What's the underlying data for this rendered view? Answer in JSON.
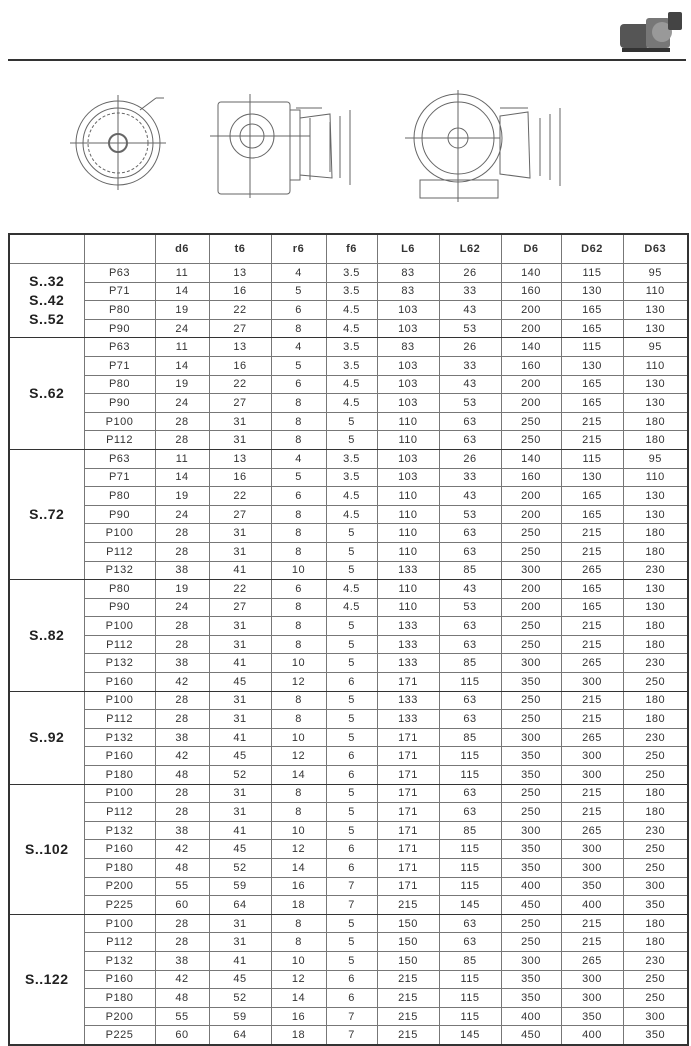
{
  "table": {
    "headers": [
      "",
      "",
      "d6",
      "t6",
      "r6",
      "f6",
      "L6",
      "L62",
      "D6",
      "D62",
      "D63"
    ],
    "groups": [
      {
        "label": [
          "S..32",
          "S..42",
          "S..52"
        ],
        "rows": [
          [
            "P63",
            "11",
            "13",
            "4",
            "3.5",
            "83",
            "26",
            "140",
            "115",
            "95"
          ],
          [
            "P71",
            "14",
            "16",
            "5",
            "3.5",
            "83",
            "33",
            "160",
            "130",
            "110"
          ],
          [
            "P80",
            "19",
            "22",
            "6",
            "4.5",
            "103",
            "43",
            "200",
            "165",
            "130"
          ],
          [
            "P90",
            "24",
            "27",
            "8",
            "4.5",
            "103",
            "53",
            "200",
            "165",
            "130"
          ]
        ]
      },
      {
        "label": [
          "S..62"
        ],
        "rows": [
          [
            "P63",
            "11",
            "13",
            "4",
            "3.5",
            "83",
            "26",
            "140",
            "115",
            "95"
          ],
          [
            "P71",
            "14",
            "16",
            "5",
            "3.5",
            "103",
            "33",
            "160",
            "130",
            "110"
          ],
          [
            "P80",
            "19",
            "22",
            "6",
            "4.5",
            "103",
            "43",
            "200",
            "165",
            "130"
          ],
          [
            "P90",
            "24",
            "27",
            "8",
            "4.5",
            "103",
            "53",
            "200",
            "165",
            "130"
          ],
          [
            "P100",
            "28",
            "31",
            "8",
            "5",
            "110",
            "63",
            "250",
            "215",
            "180"
          ],
          [
            "P112",
            "28",
            "31",
            "8",
            "5",
            "110",
            "63",
            "250",
            "215",
            "180"
          ]
        ]
      },
      {
        "label": [
          "S..72"
        ],
        "rows": [
          [
            "P63",
            "11",
            "13",
            "4",
            "3.5",
            "103",
            "26",
            "140",
            "115",
            "95"
          ],
          [
            "P71",
            "14",
            "16",
            "5",
            "3.5",
            "103",
            "33",
            "160",
            "130",
            "110"
          ],
          [
            "P80",
            "19",
            "22",
            "6",
            "4.5",
            "110",
            "43",
            "200",
            "165",
            "130"
          ],
          [
            "P90",
            "24",
            "27",
            "8",
            "4.5",
            "110",
            "53",
            "200",
            "165",
            "130"
          ],
          [
            "P100",
            "28",
            "31",
            "8",
            "5",
            "110",
            "63",
            "250",
            "215",
            "180"
          ],
          [
            "P112",
            "28",
            "31",
            "8",
            "5",
            "110",
            "63",
            "250",
            "215",
            "180"
          ],
          [
            "P132",
            "38",
            "41",
            "10",
            "5",
            "133",
            "85",
            "300",
            "265",
            "230"
          ]
        ]
      },
      {
        "label": [
          "S..82"
        ],
        "rows": [
          [
            "P80",
            "19",
            "22",
            "6",
            "4.5",
            "110",
            "43",
            "200",
            "165",
            "130"
          ],
          [
            "P90",
            "24",
            "27",
            "8",
            "4.5",
            "110",
            "53",
            "200",
            "165",
            "130"
          ],
          [
            "P100",
            "28",
            "31",
            "8",
            "5",
            "133",
            "63",
            "250",
            "215",
            "180"
          ],
          [
            "P112",
            "28",
            "31",
            "8",
            "5",
            "133",
            "63",
            "250",
            "215",
            "180"
          ],
          [
            "P132",
            "38",
            "41",
            "10",
            "5",
            "133",
            "85",
            "300",
            "265",
            "230"
          ],
          [
            "P160",
            "42",
            "45",
            "12",
            "6",
            "171",
            "115",
            "350",
            "300",
            "250"
          ]
        ]
      },
      {
        "label": [
          "S..92"
        ],
        "rows": [
          [
            "P100",
            "28",
            "31",
            "8",
            "5",
            "133",
            "63",
            "250",
            "215",
            "180"
          ],
          [
            "P112",
            "28",
            "31",
            "8",
            "5",
            "133",
            "63",
            "250",
            "215",
            "180"
          ],
          [
            "P132",
            "38",
            "41",
            "10",
            "5",
            "171",
            "85",
            "300",
            "265",
            "230"
          ],
          [
            "P160",
            "42",
            "45",
            "12",
            "6",
            "171",
            "115",
            "350",
            "300",
            "250"
          ],
          [
            "P180",
            "48",
            "52",
            "14",
            "6",
            "171",
            "115",
            "350",
            "300",
            "250"
          ]
        ]
      },
      {
        "label": [
          "S..102"
        ],
        "rows": [
          [
            "P100",
            "28",
            "31",
            "8",
            "5",
            "171",
            "63",
            "250",
            "215",
            "180"
          ],
          [
            "P112",
            "28",
            "31",
            "8",
            "5",
            "171",
            "63",
            "250",
            "215",
            "180"
          ],
          [
            "P132",
            "38",
            "41",
            "10",
            "5",
            "171",
            "85",
            "300",
            "265",
            "230"
          ],
          [
            "P160",
            "42",
            "45",
            "12",
            "6",
            "171",
            "115",
            "350",
            "300",
            "250"
          ],
          [
            "P180",
            "48",
            "52",
            "14",
            "6",
            "171",
            "115",
            "350",
            "300",
            "250"
          ],
          [
            "P200",
            "55",
            "59",
            "16",
            "7",
            "171",
            "115",
            "400",
            "350",
            "300"
          ],
          [
            "P225",
            "60",
            "64",
            "18",
            "7",
            "215",
            "145",
            "450",
            "400",
            "350"
          ]
        ]
      },
      {
        "label": [
          "S..122"
        ],
        "rows": [
          [
            "P100",
            "28",
            "31",
            "8",
            "5",
            "150",
            "63",
            "250",
            "215",
            "180"
          ],
          [
            "P112",
            "28",
            "31",
            "8",
            "5",
            "150",
            "63",
            "250",
            "215",
            "180"
          ],
          [
            "P132",
            "38",
            "41",
            "10",
            "5",
            "150",
            "85",
            "300",
            "265",
            "230"
          ],
          [
            "P160",
            "42",
            "45",
            "12",
            "6",
            "215",
            "115",
            "350",
            "300",
            "250"
          ],
          [
            "P180",
            "48",
            "52",
            "14",
            "6",
            "215",
            "115",
            "350",
            "300",
            "250"
          ],
          [
            "P200",
            "55",
            "59",
            "16",
            "7",
            "215",
            "115",
            "400",
            "350",
            "300"
          ],
          [
            "P225",
            "60",
            "64",
            "18",
            "7",
            "215",
            "145",
            "450",
            "400",
            "350"
          ]
        ]
      }
    ]
  }
}
